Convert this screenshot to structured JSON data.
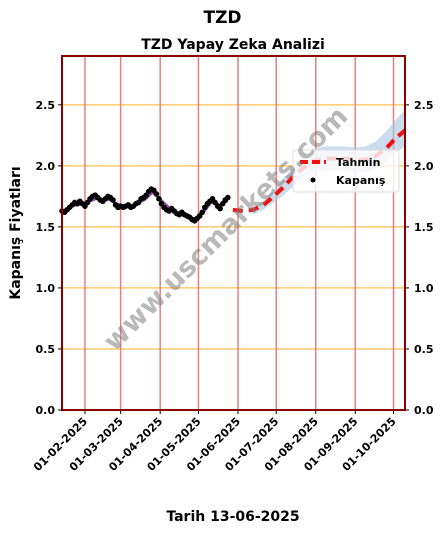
{
  "chart_data": {
    "type": "line",
    "suptitle": "TZD",
    "title": "TZD Yapay Zeka Analizi",
    "xlabel": "Tarih 13-06-2025",
    "ylabel": "Kapanış Fiyatları",
    "watermark": "www.uscmarkets.com",
    "ylim": [
      0,
      2.9
    ],
    "xlim": [
      "2025-01-14",
      "2025-10-10"
    ],
    "yticks": [
      {
        "value": 0.0,
        "label": "0.0"
      },
      {
        "value": 0.5,
        "label": "0.5"
      },
      {
        "value": 1.0,
        "label": "1.0"
      },
      {
        "value": 1.5,
        "label": "1.5"
      },
      {
        "value": 2.0,
        "label": "2.0"
      },
      {
        "value": 2.5,
        "label": "2.5"
      }
    ],
    "xticks": [
      {
        "date": "2025-02-01",
        "label": "01-02-2025"
      },
      {
        "date": "2025-03-01",
        "label": "01-03-2025"
      },
      {
        "date": "2025-04-01",
        "label": "01-04-2025"
      },
      {
        "date": "2025-05-01",
        "label": "01-05-2025"
      },
      {
        "date": "2025-06-01",
        "label": "01-06-2025"
      },
      {
        "date": "2025-07-01",
        "label": "01-07-2025"
      },
      {
        "date": "2025-08-01",
        "label": "01-08-2025"
      },
      {
        "date": "2025-09-01",
        "label": "01-09-2025"
      },
      {
        "date": "2025-10-01",
        "label": "01-10-2025"
      }
    ],
    "legend": {
      "position": "right",
      "entries": [
        {
          "label": "Tahmin",
          "color": "#ee1111",
          "style": "dashed-line"
        },
        {
          "label": "Kapanış",
          "color": "#000000",
          "style": "dot"
        }
      ]
    },
    "grid": {
      "horizontal_color": "#ffc966",
      "vertical_color": "#e88080"
    },
    "colors": {
      "forecast": "#ee1111",
      "close": "#000000",
      "smooth": "#8e44ad",
      "band": "#a9c6e0",
      "frame": "#8b0000"
    },
    "series": [
      {
        "name": "Kapanış",
        "kind": "scatter",
        "points": [
          [
            "2025-01-14",
            1.63
          ],
          [
            "2025-01-16",
            1.62
          ],
          [
            "2025-01-18",
            1.64
          ],
          [
            "2025-01-20",
            1.66
          ],
          [
            "2025-01-22",
            1.68
          ],
          [
            "2025-01-24",
            1.7
          ],
          [
            "2025-01-26",
            1.69
          ],
          [
            "2025-01-28",
            1.71
          ],
          [
            "2025-01-30",
            1.69
          ],
          [
            "2025-02-01",
            1.67
          ],
          [
            "2025-02-03",
            1.7
          ],
          [
            "2025-02-05",
            1.73
          ],
          [
            "2025-02-07",
            1.75
          ],
          [
            "2025-02-09",
            1.76
          ],
          [
            "2025-02-11",
            1.74
          ],
          [
            "2025-02-13",
            1.72
          ],
          [
            "2025-02-15",
            1.71
          ],
          [
            "2025-02-17",
            1.73
          ],
          [
            "2025-02-19",
            1.75
          ],
          [
            "2025-02-21",
            1.74
          ],
          [
            "2025-02-23",
            1.72
          ],
          [
            "2025-02-25",
            1.68
          ],
          [
            "2025-02-27",
            1.66
          ],
          [
            "2025-03-01",
            1.67
          ],
          [
            "2025-03-03",
            1.66
          ],
          [
            "2025-03-05",
            1.67
          ],
          [
            "2025-03-07",
            1.68
          ],
          [
            "2025-03-09",
            1.66
          ],
          [
            "2025-03-11",
            1.67
          ],
          [
            "2025-03-13",
            1.69
          ],
          [
            "2025-03-15",
            1.7
          ],
          [
            "2025-03-17",
            1.73
          ],
          [
            "2025-03-19",
            1.74
          ],
          [
            "2025-03-21",
            1.76
          ],
          [
            "2025-03-23",
            1.79
          ],
          [
            "2025-03-25",
            1.81
          ],
          [
            "2025-03-27",
            1.8
          ],
          [
            "2025-03-29",
            1.77
          ],
          [
            "2025-03-31",
            1.73
          ],
          [
            "2025-04-02",
            1.69
          ],
          [
            "2025-04-04",
            1.66
          ],
          [
            "2025-04-06",
            1.64
          ],
          [
            "2025-04-08",
            1.63
          ],
          [
            "2025-04-10",
            1.65
          ],
          [
            "2025-04-12",
            1.63
          ],
          [
            "2025-04-14",
            1.61
          ],
          [
            "2025-04-16",
            1.6
          ],
          [
            "2025-04-18",
            1.62
          ],
          [
            "2025-04-20",
            1.6
          ],
          [
            "2025-04-22",
            1.59
          ],
          [
            "2025-04-24",
            1.58
          ],
          [
            "2025-04-26",
            1.56
          ],
          [
            "2025-04-28",
            1.55
          ],
          [
            "2025-04-30",
            1.57
          ],
          [
            "2025-05-02",
            1.59
          ],
          [
            "2025-05-04",
            1.62
          ],
          [
            "2025-05-06",
            1.66
          ],
          [
            "2025-05-08",
            1.69
          ],
          [
            "2025-05-10",
            1.71
          ],
          [
            "2025-05-12",
            1.73
          ],
          [
            "2025-05-14",
            1.7
          ],
          [
            "2025-05-16",
            1.67
          ],
          [
            "2025-05-18",
            1.65
          ],
          [
            "2025-05-20",
            1.69
          ],
          [
            "2025-05-22",
            1.72
          ],
          [
            "2025-05-24",
            1.74
          ]
        ]
      },
      {
        "name": "",
        "kind": "smooth",
        "points": [
          [
            "2025-01-14",
            1.63
          ],
          [
            "2025-01-22",
            1.67
          ],
          [
            "2025-02-01",
            1.69
          ],
          [
            "2025-02-10",
            1.73
          ],
          [
            "2025-02-20",
            1.72
          ],
          [
            "2025-03-01",
            1.68
          ],
          [
            "2025-03-10",
            1.67
          ],
          [
            "2025-03-20",
            1.72
          ],
          [
            "2025-03-26",
            1.78
          ],
          [
            "2025-04-01",
            1.73
          ],
          [
            "2025-04-10",
            1.64
          ],
          [
            "2025-04-20",
            1.6
          ],
          [
            "2025-04-28",
            1.57
          ],
          [
            "2025-05-06",
            1.63
          ],
          [
            "2025-05-12",
            1.71
          ],
          [
            "2025-05-18",
            1.68
          ],
          [
            "2025-05-24",
            1.71
          ]
        ]
      },
      {
        "name": "Tahmin",
        "kind": "forecast",
        "points": [
          [
            "2025-05-28",
            1.64
          ],
          [
            "2025-06-05",
            1.63
          ],
          [
            "2025-06-13",
            1.64
          ],
          [
            "2025-06-21",
            1.68
          ],
          [
            "2025-06-29",
            1.75
          ],
          [
            "2025-07-07",
            1.83
          ],
          [
            "2025-07-15",
            1.92
          ],
          [
            "2025-07-23",
            1.99
          ],
          [
            "2025-07-31",
            2.04
          ],
          [
            "2025-08-08",
            2.06
          ],
          [
            "2025-08-16",
            2.06
          ],
          [
            "2025-08-24",
            2.06
          ],
          [
            "2025-09-01",
            2.05
          ],
          [
            "2025-09-09",
            2.05
          ],
          [
            "2025-09-17",
            2.08
          ],
          [
            "2025-09-25",
            2.14
          ],
          [
            "2025-10-03",
            2.23
          ],
          [
            "2025-10-10",
            2.29
          ]
        ]
      }
    ],
    "confidence_band": {
      "points": [
        [
          "2025-06-13",
          1.6,
          1.66
        ],
        [
          "2025-06-21",
          1.64,
          1.71
        ],
        [
          "2025-06-29",
          1.7,
          1.8
        ],
        [
          "2025-07-07",
          1.76,
          1.9
        ],
        [
          "2025-07-15",
          1.84,
          2.0
        ],
        [
          "2025-07-23",
          1.9,
          2.08
        ],
        [
          "2025-07-31",
          1.94,
          2.14
        ],
        [
          "2025-08-08",
          1.96,
          2.16
        ],
        [
          "2025-08-16",
          1.96,
          2.16
        ],
        [
          "2025-08-24",
          1.96,
          2.16
        ],
        [
          "2025-09-01",
          1.95,
          2.15
        ],
        [
          "2025-09-09",
          1.95,
          2.16
        ],
        [
          "2025-09-17",
          1.98,
          2.2
        ],
        [
          "2025-09-25",
          2.03,
          2.28
        ],
        [
          "2025-10-03",
          2.11,
          2.38
        ],
        [
          "2025-10-10",
          2.16,
          2.46
        ]
      ]
    }
  }
}
